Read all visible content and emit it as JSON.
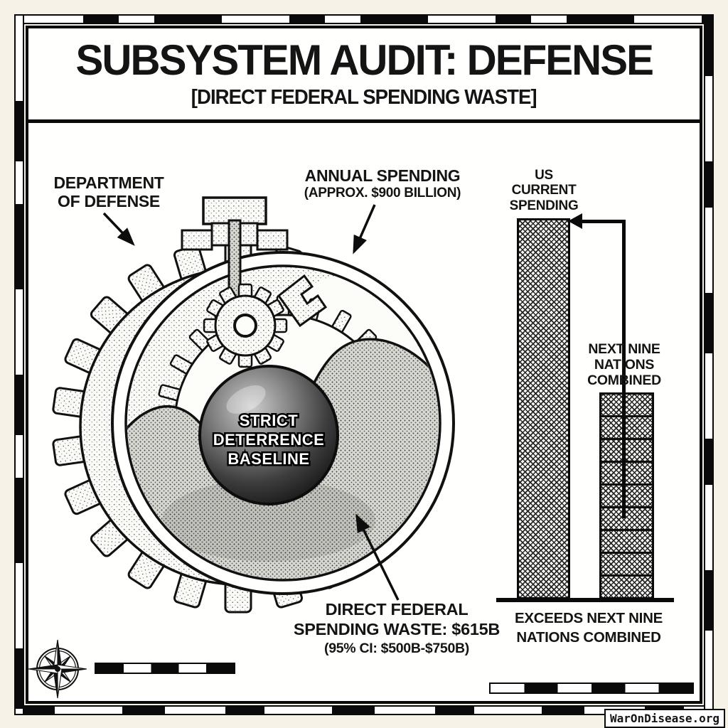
{
  "header": {
    "title": "SUBSYSTEM AUDIT: DEFENSE",
    "subtitle": "[DIRECT FEDERAL SPENDING WASTE]"
  },
  "mechanism": {
    "dod_label": "DEPARTMENT OF DEFENSE",
    "annual_label": "ANNUAL SPENDING",
    "annual_sub": "(APPROX. $900 BILLION)",
    "core": {
      "line1": "STRICT",
      "line2": "DETERRENCE",
      "line3": "BASELINE"
    },
    "waste_label": "DIRECT FEDERAL SPENDING WASTE: $615B",
    "waste_ci": "(95% CI: $500B-$750B)"
  },
  "chart_data": {
    "type": "bar",
    "bars": [
      {
        "label": "US CURRENT SPENDING",
        "relative_height": 1.0,
        "segments": 1,
        "pattern": "crosshatch"
      },
      {
        "label": "NEXT NINE NATIONS COMBINED",
        "relative_height": 0.54,
        "segments": 9,
        "pattern": "crosshatch"
      }
    ],
    "caption": "EXCEEDS NEXT NINE NATIONS COMBINED",
    "axis": "none (pictorial comparison, arrow links next-nine label to top of US bar)"
  },
  "footer": {
    "watermark": "WarOnDisease.org"
  },
  "icons": {
    "compass_rose": "8-point compass star, bottom-left",
    "scale_bar": "alternating black/white map scale bars",
    "arrows": "black annotation arrows"
  },
  "colors": {
    "paper": "#f6f2e7",
    "panel": "#fffffd",
    "ink": "#0a0a0a"
  }
}
